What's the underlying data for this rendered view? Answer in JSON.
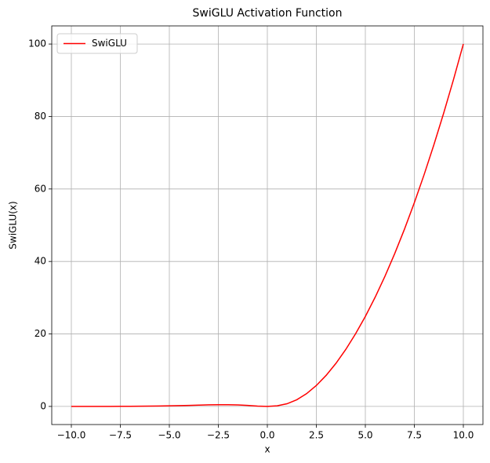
{
  "chart_data": {
    "type": "line",
    "title": "SwiGLU Activation Function",
    "x_label": "x",
    "y_label": "SwiGLU(x)",
    "x": [
      -10,
      -9.5,
      -9,
      -8.5,
      -8,
      -7.5,
      -7,
      -6.5,
      -6,
      -5.5,
      -5,
      -4.5,
      -4,
      -3.5,
      -3,
      -2.5,
      -2,
      -1.5,
      -1,
      -0.5,
      0,
      0.5,
      1,
      1.5,
      2,
      2.5,
      3,
      3.5,
      4,
      4.5,
      5,
      5.5,
      6,
      6.5,
      7,
      7.5,
      8,
      8.5,
      9,
      9.5,
      10
    ],
    "series": [
      {
        "name": "SwiGLU",
        "color": "#ff0000",
        "values": [
          0.0,
          0.01,
          0.01,
          0.01,
          0.02,
          0.03,
          0.04,
          0.06,
          0.09,
          0.12,
          0.17,
          0.22,
          0.29,
          0.36,
          0.43,
          0.47,
          0.48,
          0.41,
          0.27,
          0.09,
          0,
          0.16,
          0.73,
          1.84,
          3.52,
          5.78,
          8.57,
          11.89,
          15.71,
          20.03,
          24.83,
          30.13,
          35.91,
          42.19,
          48.96,
          56.22,
          63.98,
          72.24,
          80.99,
          90.24,
          100.0
        ]
      }
    ],
    "xlim": [
      -11,
      11
    ],
    "xticks": [
      {
        "value": -10,
        "label": "−10.0"
      },
      {
        "value": -7.5,
        "label": "−7.5"
      },
      {
        "value": -5,
        "label": "−5.0"
      },
      {
        "value": -2.5,
        "label": "−2.5"
      },
      {
        "value": 0,
        "label": "0.0"
      },
      {
        "value": 2.5,
        "label": "2.5"
      },
      {
        "value": 5,
        "label": "5.0"
      },
      {
        "value": 7.5,
        "label": "7.5"
      },
      {
        "value": 10,
        "label": "10.0"
      }
    ],
    "ylim": [
      -5,
      105
    ],
    "yticks": [
      0,
      20,
      40,
      60,
      80,
      100
    ],
    "grid": true,
    "legend": "upper left"
  }
}
